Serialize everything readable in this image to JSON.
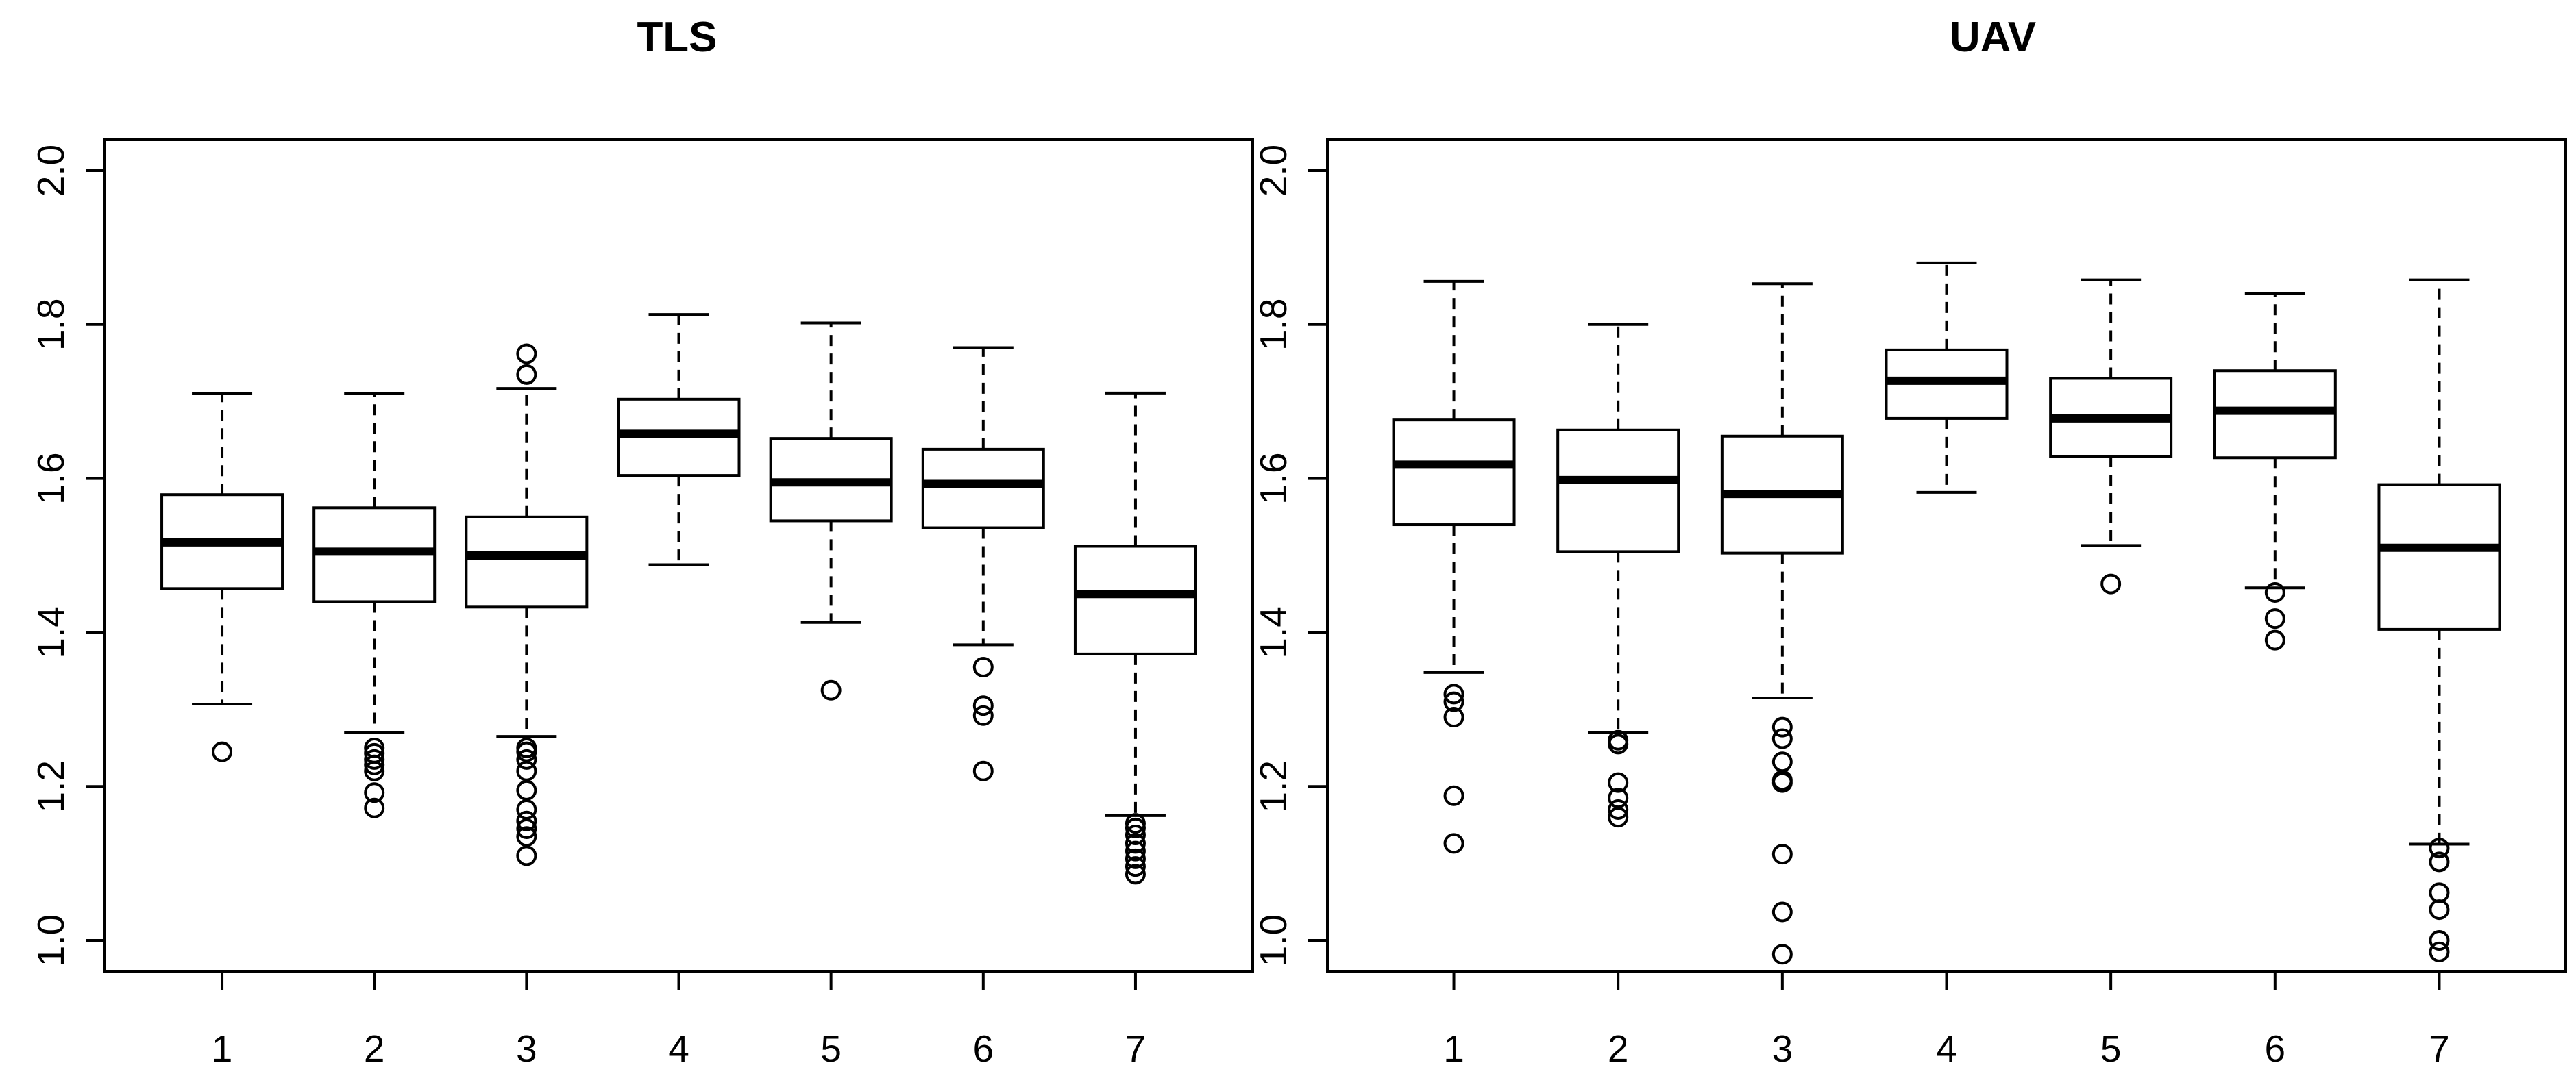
{
  "chart_data": [
    {
      "type": "boxplot",
      "title": "TLS",
      "xlabel": "",
      "ylabel": "",
      "categories": [
        "1",
        "2",
        "3",
        "4",
        "5",
        "6",
        "7"
      ],
      "ylim": [
        0.96,
        2.04
      ],
      "yticks": [
        "1.0",
        "1.2",
        "1.4",
        "1.6",
        "1.8",
        "2.0"
      ],
      "boxes": [
        {
          "lower_whisker": 1.307,
          "q1": 1.457,
          "median": 1.517,
          "q3": 1.579,
          "upper_whisker": 1.71,
          "outliers": [
            1.245
          ]
        },
        {
          "lower_whisker": 1.27,
          "q1": 1.44,
          "median": 1.505,
          "q3": 1.562,
          "upper_whisker": 1.71,
          "outliers": [
            1.172,
            1.192,
            1.22,
            1.228,
            1.235,
            1.243,
            1.25
          ]
        },
        {
          "lower_whisker": 1.265,
          "q1": 1.433,
          "median": 1.5,
          "q3": 1.55,
          "upper_whisker": 1.717,
          "outliers": [
            1.11,
            1.135,
            1.145,
            1.155,
            1.17,
            1.195,
            1.22,
            1.235,
            1.245,
            1.25,
            1.735,
            1.762
          ]
        },
        {
          "lower_whisker": 1.488,
          "q1": 1.604,
          "median": 1.658,
          "q3": 1.703,
          "upper_whisker": 1.813,
          "outliers": []
        },
        {
          "lower_whisker": 1.413,
          "q1": 1.545,
          "median": 1.595,
          "q3": 1.652,
          "upper_whisker": 1.802,
          "outliers": [
            1.325
          ]
        },
        {
          "lower_whisker": 1.384,
          "q1": 1.536,
          "median": 1.593,
          "q3": 1.638,
          "upper_whisker": 1.77,
          "outliers": [
            1.22,
            1.292,
            1.305,
            1.355
          ]
        },
        {
          "lower_whisker": 1.162,
          "q1": 1.372,
          "median": 1.45,
          "q3": 1.512,
          "upper_whisker": 1.711,
          "outliers": [
            1.086,
            1.096,
            1.106,
            1.116,
            1.126,
            1.137,
            1.146,
            1.152
          ]
        }
      ]
    },
    {
      "type": "boxplot",
      "title": "UAV",
      "xlabel": "",
      "ylabel": "",
      "categories": [
        "1",
        "2",
        "3",
        "4",
        "5",
        "6",
        "7"
      ],
      "ylim": [
        0.96,
        2.04
      ],
      "yticks": [
        "1.0",
        "1.2",
        "1.4",
        "1.6",
        "1.8",
        "2.0"
      ],
      "boxes": [
        {
          "lower_whisker": 1.348,
          "q1": 1.54,
          "median": 1.618,
          "q3": 1.676,
          "upper_whisker": 1.856,
          "outliers": [
            1.126,
            1.188,
            1.29,
            1.31,
            1.32
          ]
        },
        {
          "lower_whisker": 1.27,
          "q1": 1.505,
          "median": 1.598,
          "q3": 1.663,
          "upper_whisker": 1.8,
          "outliers": [
            1.16,
            1.17,
            1.185,
            1.205,
            1.255,
            1.26
          ]
        },
        {
          "lower_whisker": 1.315,
          "q1": 1.503,
          "median": 1.58,
          "q3": 1.655,
          "upper_whisker": 1.853,
          "outliers": [
            0.982,
            1.037,
            1.112,
            1.205,
            1.208,
            1.232,
            1.262,
            1.277
          ]
        },
        {
          "lower_whisker": 1.582,
          "q1": 1.678,
          "median": 1.727,
          "q3": 1.767,
          "upper_whisker": 1.88,
          "outliers": []
        },
        {
          "lower_whisker": 1.513,
          "q1": 1.629,
          "median": 1.678,
          "q3": 1.73,
          "upper_whisker": 1.858,
          "outliers": [
            1.463
          ]
        },
        {
          "lower_whisker": 1.458,
          "q1": 1.627,
          "median": 1.688,
          "q3": 1.74,
          "upper_whisker": 1.84,
          "outliers": [
            1.39,
            1.418,
            1.452
          ]
        },
        {
          "lower_whisker": 1.125,
          "q1": 1.404,
          "median": 1.51,
          "q3": 1.592,
          "upper_whisker": 1.858,
          "outliers": [
            0.985,
            1.0,
            1.04,
            1.062,
            1.102,
            1.12
          ]
        }
      ]
    }
  ]
}
